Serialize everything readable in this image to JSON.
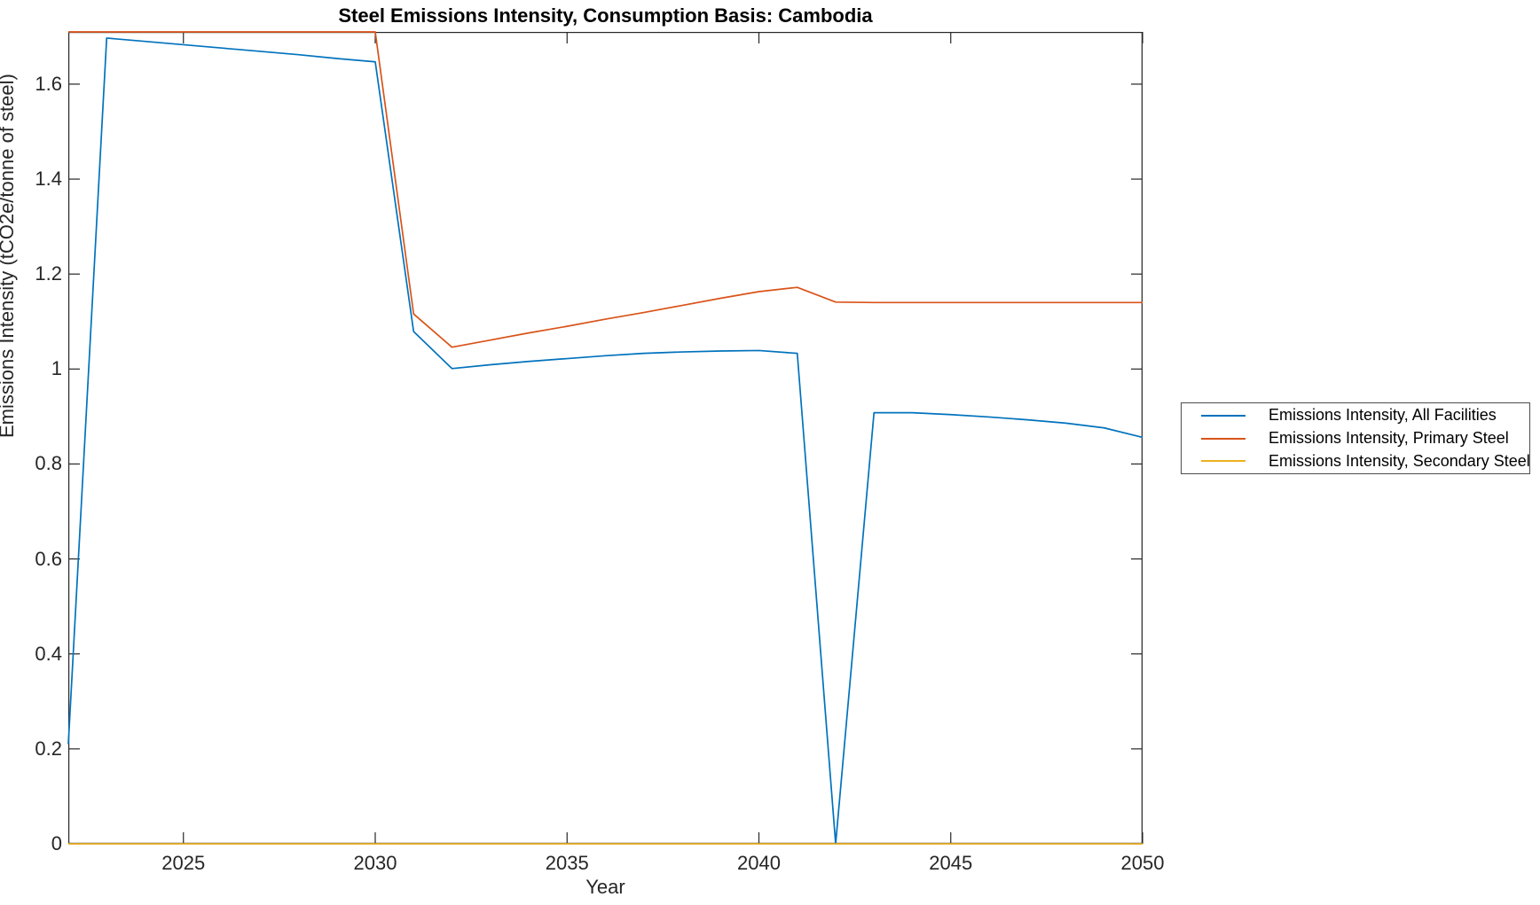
{
  "window": {
    "title": "Steel Emissions Intensity, Consumption Basis: Cambodia"
  },
  "colors": {
    "axis": "#262626",
    "background": "#ffffff",
    "series_blue": "#0072BD",
    "series_red": "#D95319",
    "series_yellow": "#EDB120"
  },
  "chart_data": {
    "type": "line",
    "title": "Steel Emissions Intensity, Consumption Basis: Cambodia",
    "xlabel": "Year",
    "ylabel": "Emissions Intensity (tCO2e/tonne of steel)",
    "xlim": [
      2022,
      2050
    ],
    "ylim": [
      0,
      1.71
    ],
    "x_ticks": [
      2025,
      2030,
      2035,
      2040,
      2045,
      2050
    ],
    "y_ticks": [
      0,
      0.2,
      0.4,
      0.6,
      0.8,
      1,
      1.2,
      1.4,
      1.6
    ],
    "grid": false,
    "box": true,
    "legend_position": "right-outside",
    "x": [
      2022,
      2023,
      2024,
      2025,
      2026,
      2027,
      2028,
      2029,
      2030,
      2031,
      2032,
      2033,
      2034,
      2035,
      2036,
      2037,
      2038,
      2039,
      2040,
      2041,
      2042,
      2043,
      2044,
      2045,
      2046,
      2047,
      2048,
      2049,
      2050
    ],
    "series": [
      {
        "name": "Emissions Intensity, All Facilities",
        "color": "#0072BD",
        "values": [
          0.21,
          1.697,
          1.69,
          1.683,
          1.676,
          1.669,
          1.662,
          1.654,
          1.647,
          1.079,
          1.001,
          1.009,
          1.016,
          1.022,
          1.028,
          1.033,
          1.036,
          1.038,
          1.039,
          1.033,
          0.0,
          0.908,
          0.908,
          0.904,
          0.899,
          0.893,
          0.886,
          0.876,
          0.856
        ]
      },
      {
        "name": "Emissions Intensity, Primary Steel",
        "color": "#D95319",
        "values": [
          1.71,
          1.71,
          1.71,
          1.71,
          1.71,
          1.71,
          1.71,
          1.71,
          1.71,
          1.116,
          1.046,
          1.061,
          1.076,
          1.09,
          1.105,
          1.119,
          1.134,
          1.149,
          1.163,
          1.172,
          1.141,
          1.14,
          1.14,
          1.14,
          1.14,
          1.14,
          1.14,
          1.14,
          1.14
        ]
      },
      {
        "name": "Emissions Intensity, Secondary Steel",
        "color": "#EDB120",
        "values": [
          0,
          0,
          0,
          0,
          0,
          0,
          0,
          0,
          0,
          0,
          0,
          0,
          0,
          0,
          0,
          0,
          0,
          0,
          0,
          0,
          0,
          0,
          0,
          0,
          0,
          0,
          0,
          0,
          0
        ]
      }
    ]
  }
}
